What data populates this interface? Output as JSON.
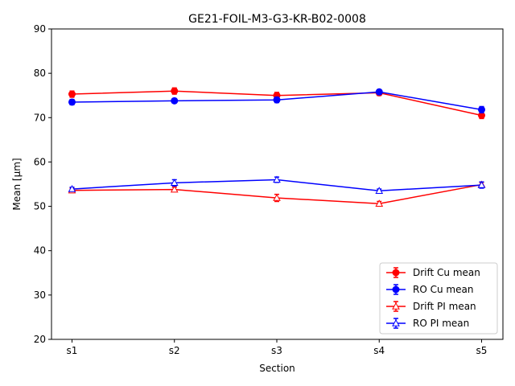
{
  "chart_data": {
    "type": "line",
    "title": "GE21-FOIL-M3-G3-KR-B02-0008",
    "xlabel": "Section",
    "ylabel": "Mean [μm]",
    "categories": [
      "s1",
      "s2",
      "s3",
      "s4",
      "s5"
    ],
    "ylim": [
      20,
      90
    ],
    "yticks": [
      20,
      30,
      40,
      50,
      60,
      70,
      80,
      90
    ],
    "grid": false,
    "legend_position": "bottom-right",
    "series": [
      {
        "name": "Drift Cu mean",
        "color": "#ff0000",
        "marker": "circle",
        "filled": true,
        "values": [
          75.3,
          76.0,
          75.0,
          75.6,
          70.5
        ],
        "errors": [
          0.7,
          0.7,
          0.7,
          0.6,
          0.7
        ]
      },
      {
        "name": "RO Cu mean",
        "color": "#0000ff",
        "marker": "circle",
        "filled": true,
        "values": [
          73.5,
          73.8,
          74.0,
          75.8,
          71.8
        ],
        "errors": [
          0.6,
          0.5,
          0.6,
          0.5,
          0.7
        ]
      },
      {
        "name": "Drift PI mean",
        "color": "#ff0000",
        "marker": "triangle",
        "filled": false,
        "values": [
          53.6,
          53.8,
          51.9,
          50.6,
          54.9
        ],
        "errors": [
          0.5,
          0.5,
          0.8,
          0.5,
          0.5
        ]
      },
      {
        "name": "RO PI mean",
        "color": "#0000ff",
        "marker": "triangle",
        "filled": false,
        "values": [
          53.9,
          55.3,
          56.0,
          53.5,
          54.8
        ],
        "errors": [
          0.4,
          0.7,
          0.6,
          0.4,
          0.7
        ]
      }
    ]
  }
}
